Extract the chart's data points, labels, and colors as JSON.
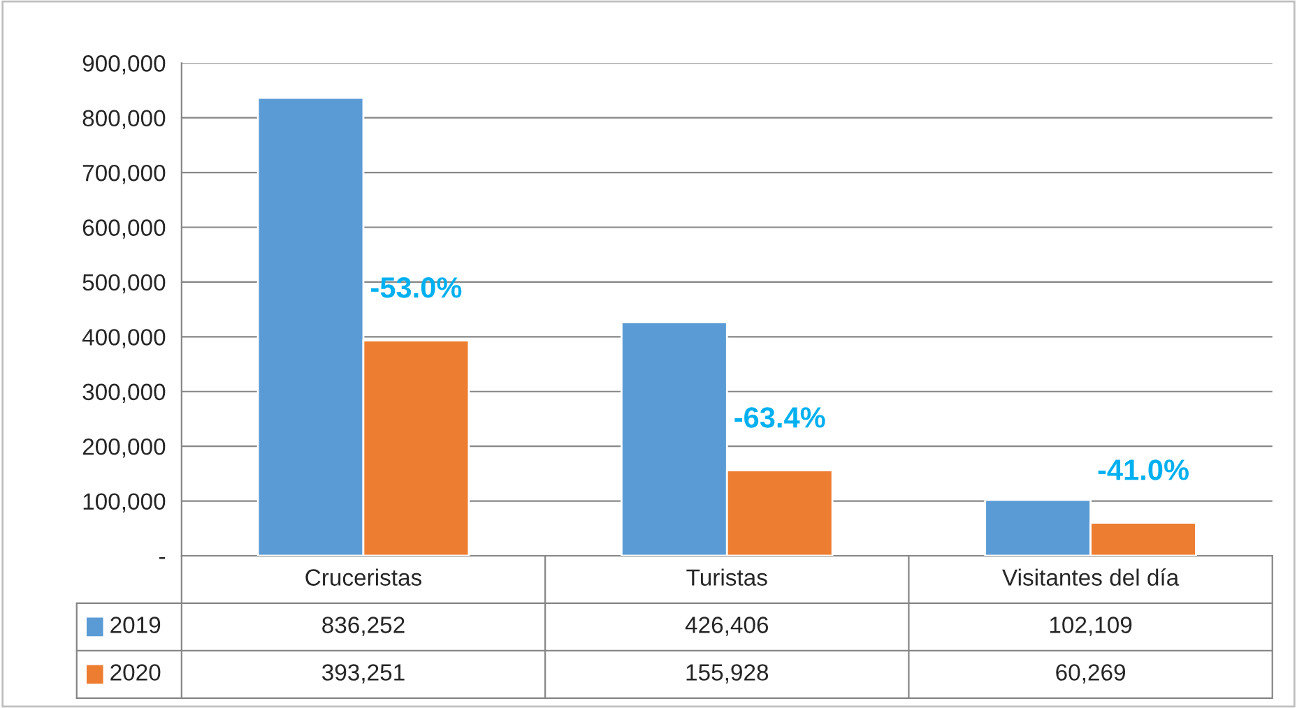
{
  "chart_data": {
    "type": "bar",
    "categories": [
      "Cruceristas",
      "Turistas",
      "Visitantes del día"
    ],
    "series": [
      {
        "name": "2019",
        "color": "#5b9bd5",
        "values": [
          836252,
          426406,
          102109
        ],
        "value_labels": [
          "836,252",
          "426,406",
          "102,109"
        ]
      },
      {
        "name": "2020",
        "color": "#ed7d31",
        "values": [
          393251,
          155928,
          60269
        ],
        "value_labels": [
          "393,251",
          "155,928",
          "60,269"
        ]
      }
    ],
    "ylim": [
      0,
      900000
    ],
    "yticks": [
      {
        "value": 0,
        "label": "-"
      },
      {
        "value": 100000,
        "label": "100,000"
      },
      {
        "value": 200000,
        "label": "200,000"
      },
      {
        "value": 300000,
        "label": "300,000"
      },
      {
        "value": 400000,
        "label": "400,000"
      },
      {
        "value": 500000,
        "label": "500,000"
      },
      {
        "value": 600000,
        "label": "600,000"
      },
      {
        "value": 700000,
        "label": "700,000"
      },
      {
        "value": 800000,
        "label": "800,000"
      },
      {
        "value": 900000,
        "label": "900,000"
      }
    ],
    "grid": "y",
    "legend": "bottom",
    "annotations": [
      {
        "text": "-53.0%",
        "x": "Cruceristas",
        "y": 393251
      },
      {
        "text": "-63.4%",
        "x": "Turistas",
        "y": 155928
      },
      {
        "text": "-41.0%",
        "x": "Visitantes del día",
        "y": 60269
      }
    ]
  }
}
